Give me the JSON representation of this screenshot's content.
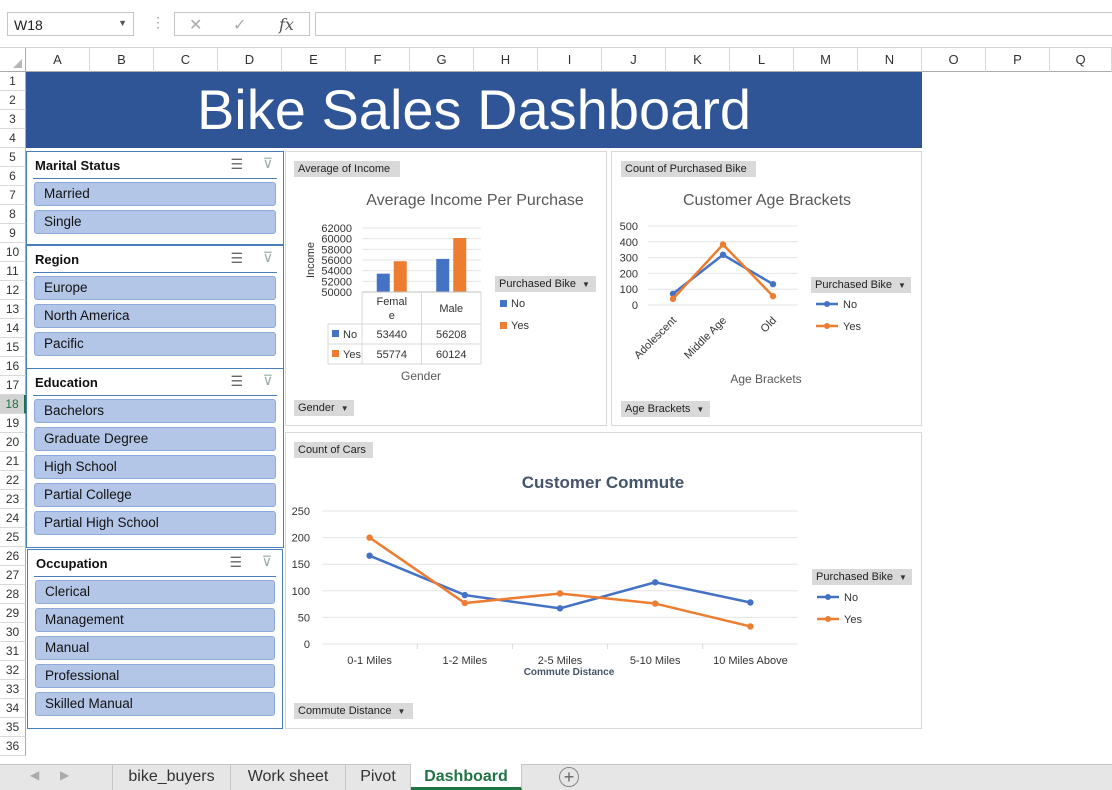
{
  "formula_bar": {
    "name_box": "W18",
    "cancel_icon": "✕",
    "enter_icon": "✓",
    "function_icon": "fx",
    "formula_value": ""
  },
  "columns": [
    "A",
    "B",
    "C",
    "D",
    "E",
    "F",
    "G",
    "H",
    "I",
    "J",
    "K",
    "L",
    "M",
    "N",
    "O",
    "P",
    "Q"
  ],
  "rows": [
    "1",
    "2",
    "3",
    "4",
    "5",
    "6",
    "7",
    "8",
    "9",
    "10",
    "11",
    "12",
    "13",
    "14",
    "15",
    "16",
    "17",
    "18",
    "19",
    "20",
    "21",
    "22",
    "23",
    "24",
    "25",
    "26",
    "27",
    "28",
    "29",
    "30",
    "31",
    "32",
    "33",
    "34",
    "35",
    "36"
  ],
  "selected_row": "18",
  "banner": {
    "title": "Bike Sales Dashboard"
  },
  "slicers": {
    "marital": {
      "title": "Marital Status",
      "items": [
        "Married",
        "Single"
      ]
    },
    "region": {
      "title": "Region",
      "items": [
        "Europe",
        "North America",
        "Pacific"
      ]
    },
    "education": {
      "title": "Education",
      "items": [
        "Bachelors",
        "Graduate Degree",
        "High School",
        "Partial College",
        "Partial High School"
      ]
    },
    "occupation": {
      "title": "Occupation",
      "items": [
        "Clerical",
        "Management",
        "Manual",
        "Professional",
        "Skilled Manual"
      ]
    }
  },
  "income_chart": {
    "value_button": "Average of Income",
    "axis_button": "Gender",
    "legend_button": "Purchased Bike"
  },
  "age_chart": {
    "value_button": "Count of Purchased Bike",
    "axis_button": "Age Brackets",
    "legend_button": "Purchased Bike"
  },
  "commute_chart": {
    "value_button": "Count of Cars",
    "axis_button": "Commute Distance",
    "legend_button": "Purchased Bike"
  },
  "chart_data": [
    {
      "type": "bar",
      "title": "Average Income Per Purchase",
      "xlabel": "Gender",
      "ylabel": "Income",
      "categories": [
        "Female",
        "Male"
      ],
      "series": [
        {
          "name": "No",
          "values": [
            53440,
            56208
          ],
          "color": "#4472c4"
        },
        {
          "name": "Yes",
          "values": [
            55774,
            60124
          ],
          "color": "#ed7d31"
        }
      ],
      "ylim": [
        50000,
        62000
      ],
      "yticks": [
        "62000",
        "60000",
        "58000",
        "56000",
        "54000",
        "52000",
        "50000"
      ],
      "data_table": true,
      "legend": "right"
    },
    {
      "type": "line",
      "title": "Customer Age Brackets",
      "xlabel": "Age Brackets",
      "ylabel": "",
      "categories": [
        "Adolescent",
        "Middle Age",
        "Old"
      ],
      "series": [
        {
          "name": "No",
          "values": [
            71,
            318,
            132
          ],
          "color": "#4472c4"
        },
        {
          "name": "Yes",
          "values": [
            39,
            383,
            56
          ],
          "color": "#ed7d31"
        }
      ],
      "ylim": [
        0,
        500
      ],
      "yticks": [
        "500",
        "400",
        "300",
        "200",
        "100",
        "0"
      ],
      "legend": "right"
    },
    {
      "type": "line",
      "title": "Customer Commute",
      "xlabel": "Commute Distance",
      "ylabel": "",
      "categories": [
        "0-1 Miles",
        "1-2 Miles",
        "2-5 Miles",
        "5-10 Miles",
        "10 Miles Above"
      ],
      "series": [
        {
          "name": "No",
          "values": [
            166,
            92,
            67,
            116,
            78
          ],
          "color": "#4472c4"
        },
        {
          "name": "Yes",
          "values": [
            200,
            77,
            95,
            76,
            33
          ],
          "color": "#ed7d31"
        }
      ],
      "ylim": [
        0,
        250
      ],
      "yticks": [
        "250",
        "200",
        "150",
        "100",
        "50",
        "0"
      ],
      "legend": "right"
    }
  ],
  "sheet_tabs": [
    "bike_buyers",
    "Work sheet",
    "Pivot",
    "Dashboard"
  ],
  "active_tab": "Dashboard"
}
